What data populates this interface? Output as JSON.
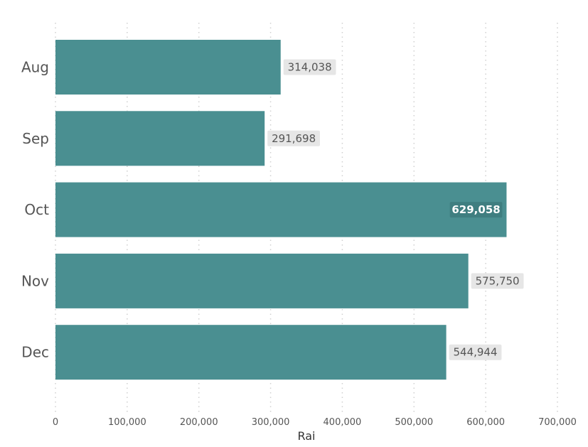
{
  "chart_data": {
    "type": "bar",
    "orientation": "horizontal",
    "categories": [
      "Aug",
      "Sep",
      "Oct",
      "Nov",
      "Dec"
    ],
    "values": [
      314038,
      291698,
      629058,
      575750,
      544944
    ],
    "value_labels": [
      "314,038",
      "291,698",
      "629,058",
      "575,750",
      "544,944"
    ],
    "xlabel": "Rai",
    "xlim": [
      0,
      700000
    ],
    "xticks": [
      0,
      100000,
      200000,
      300000,
      400000,
      500000,
      600000,
      700000
    ],
    "xtick_labels": [
      "0",
      "100,000",
      "200,000",
      "300,000",
      "400,000",
      "500,000",
      "600,000",
      "700,000"
    ],
    "grid": "vertical dotted",
    "colors": {
      "bar": "#4a8f91",
      "label_bg": "#e6e6e6",
      "label_bg_inside": "#3f7e80",
      "label_text": "#555555",
      "label_text_inside": "#ffffff",
      "grid": "#d0d0d0"
    }
  }
}
